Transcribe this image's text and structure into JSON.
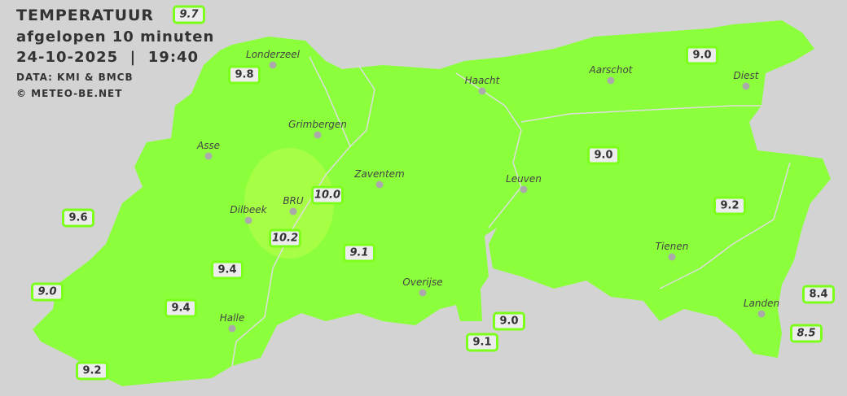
{
  "header": {
    "title": "TEMPERATUUR",
    "subtitle": "afgelopen 10 minuten",
    "datetime": "24-10-2025  |  19:40",
    "source": "DATA: KMI & BMCB",
    "copyright": "© METEO-BE.NET"
  },
  "colors": {
    "background": "#d3d3d3",
    "region": "#8cff3c",
    "warm_zone": "#a6ff44",
    "label_border": "#7cff1a"
  },
  "cities": [
    {
      "name": "Londerzeel"
    },
    {
      "name": "Haacht"
    },
    {
      "name": "Aarschot"
    },
    {
      "name": "Diest"
    },
    {
      "name": "Grimbergen"
    },
    {
      "name": "Asse"
    },
    {
      "name": "Zaventem"
    },
    {
      "name": "Leuven"
    },
    {
      "name": "Dilbeek"
    },
    {
      "name": "BRU"
    },
    {
      "name": "Tienen"
    },
    {
      "name": "Overijse"
    },
    {
      "name": "Halle"
    },
    {
      "name": "Landen"
    }
  ],
  "stations": [
    {
      "value": "9.7",
      "italic": true
    },
    {
      "value": "9.8",
      "italic": false
    },
    {
      "value": "9.0",
      "italic": false
    },
    {
      "value": "9.0",
      "italic": false
    },
    {
      "value": "9.6",
      "italic": false
    },
    {
      "value": "10.0",
      "italic": true
    },
    {
      "value": "10.2",
      "italic": true
    },
    {
      "value": "9.2",
      "italic": false
    },
    {
      "value": "9.1",
      "italic": true
    },
    {
      "value": "9.4",
      "italic": false
    },
    {
      "value": "9.0",
      "italic": true
    },
    {
      "value": "9.4",
      "italic": false
    },
    {
      "value": "9.0",
      "italic": false
    },
    {
      "value": "9.1",
      "italic": false
    },
    {
      "value": "8.4",
      "italic": false
    },
    {
      "value": "8.5",
      "italic": true
    },
    {
      "value": "9.2",
      "italic": false
    }
  ]
}
